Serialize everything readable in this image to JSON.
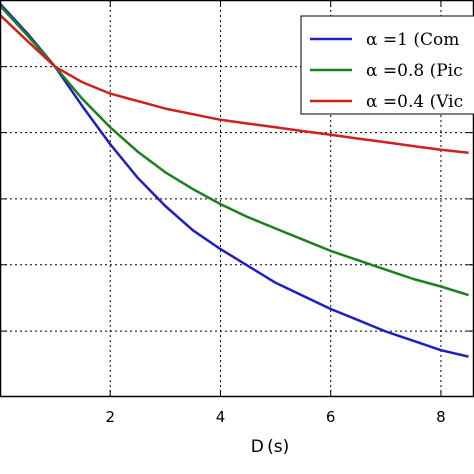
{
  "chart_data": {
    "type": "line",
    "xlabel": "D (s)",
    "ylabel": "",
    "title": "",
    "xlim": [
      0,
      8.6
    ],
    "ylim": [
      0,
      1.06
    ],
    "xticks": [
      2,
      4,
      6,
      8
    ],
    "yticks": [
      0.176,
      0.353,
      0.529,
      0.706,
      0.882
    ],
    "grid": true,
    "legend_position": "top-right",
    "series": [
      {
        "name": "α =1 (Com",
        "color": "#1f1fbf",
        "x": [
          0,
          0.5,
          1,
          1.5,
          2,
          2.5,
          3,
          3.5,
          4,
          4.5,
          5,
          5.5,
          6,
          6.5,
          7,
          7.5,
          8,
          8.5
        ],
        "y": [
          1.05,
          0.97,
          0.882,
          0.775,
          0.675,
          0.585,
          0.51,
          0.445,
          0.395,
          0.35,
          0.305,
          0.27,
          0.235,
          0.205,
          0.175,
          0.15,
          0.125,
          0.108
        ]
      },
      {
        "name": "α =0.8 (Pic",
        "color": "#1f7f1f",
        "x": [
          0,
          0.5,
          1,
          1.5,
          2,
          2.5,
          3,
          3.5,
          4,
          4.5,
          5,
          5.5,
          6,
          6.5,
          7,
          7.5,
          8,
          8.5
        ],
        "y": [
          1.045,
          0.965,
          0.882,
          0.795,
          0.72,
          0.655,
          0.6,
          0.555,
          0.515,
          0.48,
          0.45,
          0.42,
          0.39,
          0.365,
          0.34,
          0.315,
          0.295,
          0.272
        ]
      },
      {
        "name": "α =0.4 (Vic",
        "color": "#cf1f1f",
        "x": [
          0,
          0.5,
          1,
          1.5,
          2,
          2.5,
          3,
          3.5,
          4,
          4.5,
          5,
          5.5,
          6,
          6.5,
          7,
          7.5,
          8,
          8.5
        ],
        "y": [
          1.02,
          0.95,
          0.882,
          0.84,
          0.81,
          0.79,
          0.77,
          0.755,
          0.74,
          0.73,
          0.72,
          0.71,
          0.7,
          0.69,
          0.68,
          0.67,
          0.66,
          0.652
        ]
      }
    ]
  }
}
